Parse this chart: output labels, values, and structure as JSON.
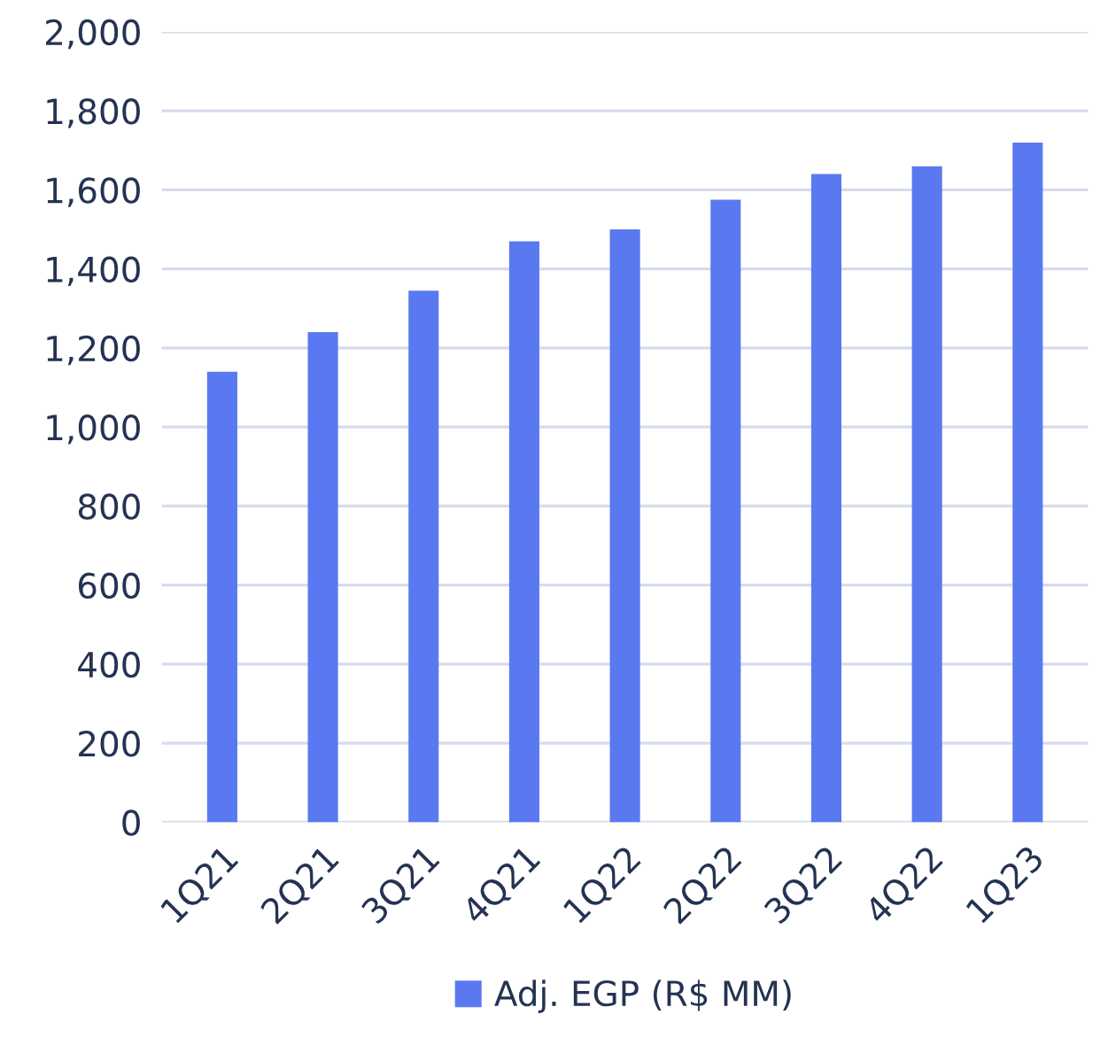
{
  "chart_data": {
    "type": "bar",
    "categories": [
      "1Q21",
      "2Q21",
      "3Q21",
      "4Q21",
      "1Q22",
      "2Q22",
      "3Q22",
      "4Q22",
      "1Q23"
    ],
    "series": [
      {
        "name": "Adj. EGP (R$ MM)",
        "color": "#5a79f0",
        "values": [
          1140,
          1240,
          1345,
          1470,
          1500,
          1575,
          1640,
          1660,
          1720
        ]
      }
    ],
    "ylim": [
      0,
      2000
    ],
    "yticks": [
      {
        "value": 0,
        "label": "0"
      },
      {
        "value": 200,
        "label": "200"
      },
      {
        "value": 400,
        "label": "400"
      },
      {
        "value": 600,
        "label": "600"
      },
      {
        "value": 800,
        "label": "800"
      },
      {
        "value": 1000,
        "label": "1,000"
      },
      {
        "value": 1200,
        "label": "1,200"
      },
      {
        "value": 1400,
        "label": "1,400"
      },
      {
        "value": 1600,
        "label": "1,600"
      },
      {
        "value": 1800,
        "label": "1,800"
      },
      {
        "value": 2000,
        "label": "2,000"
      }
    ],
    "grid": "y",
    "legend": "bottom"
  }
}
